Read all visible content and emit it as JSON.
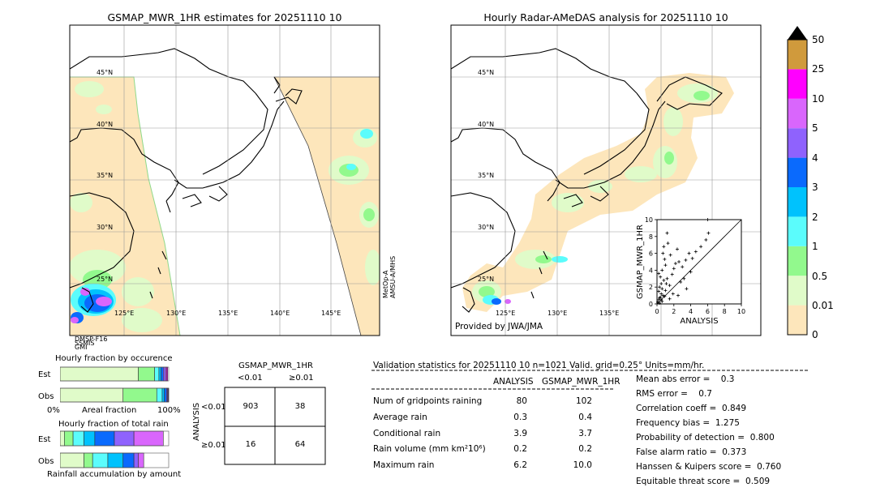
{
  "left_map": {
    "title": "GSMAP_MWR_1HR estimates for 20251110 10",
    "lat_labels": [
      "45°N",
      "40°N",
      "35°N",
      "30°N",
      "25°N"
    ],
    "lon_labels": [
      "125°E",
      "130°E",
      "135°E",
      "140°E",
      "145°E"
    ],
    "sensor_label": "MetOp-A\nAMSU-A/MHS",
    "bottom_labels": "DMSP-F16\nSSMIS\nGMI"
  },
  "right_map": {
    "title": "Hourly Radar-AMeDAS analysis for 20251110 10",
    "lat_labels": [
      "45°N",
      "40°N",
      "35°N",
      "30°N",
      "25°N"
    ],
    "lon_labels": [
      "125°E",
      "130°E",
      "135°E"
    ],
    "credit": "Provided by JWA/JMA"
  },
  "colorbar": {
    "ticks": [
      "0",
      "0.01",
      "0.5",
      "1",
      "2",
      "3",
      "4",
      "5",
      "10",
      "25",
      "50"
    ],
    "colors": [
      "#fde6bb",
      "#e0fbc9",
      "#92f98d",
      "#5bfcfc",
      "#00c2fd",
      "#0a6afd",
      "#8f62fd",
      "#d966fc",
      "#ff00ff",
      "#d09a3c"
    ],
    "extend_color": "#000000"
  },
  "chart_data": [
    {
      "type": "scatter",
      "title": "",
      "xlabel": "ANALYSIS",
      "ylabel": "GSMAP_MWR_1HR",
      "xlim": [
        0,
        10
      ],
      "ylim": [
        0,
        10
      ],
      "xticks": [
        "0",
        "2",
        "4",
        "6",
        "8",
        "10"
      ],
      "yticks": [
        "0",
        "2",
        "4",
        "6",
        "8",
        "10"
      ],
      "points": [
        [
          0.1,
          0.2
        ],
        [
          0.2,
          0.5
        ],
        [
          0.3,
          0.1
        ],
        [
          0.4,
          0.8
        ],
        [
          0.5,
          1.2
        ],
        [
          0.6,
          0.3
        ],
        [
          0.2,
          1.5
        ],
        [
          0.3,
          2.0
        ],
        [
          0.5,
          2.4
        ],
        [
          0.7,
          1.0
        ],
        [
          0.8,
          2.8
        ],
        [
          1.0,
          1.6
        ],
        [
          0.4,
          3.2
        ],
        [
          1.2,
          3.0
        ],
        [
          1.5,
          2.2
        ],
        [
          0.6,
          4.0
        ],
        [
          1.8,
          3.5
        ],
        [
          2.0,
          4.2
        ],
        [
          1.0,
          4.6
        ],
        [
          2.2,
          4.8
        ],
        [
          2.6,
          5.0
        ],
        [
          3.0,
          4.4
        ],
        [
          0.9,
          5.3
        ],
        [
          1.6,
          5.8
        ],
        [
          3.4,
          5.2
        ],
        [
          3.8,
          6.0
        ],
        [
          4.2,
          5.4
        ],
        [
          2.4,
          6.5
        ],
        [
          4.6,
          6.2
        ],
        [
          5.2,
          6.8
        ],
        [
          5.8,
          7.6
        ],
        [
          6.1,
          8.4
        ],
        [
          1.2,
          8.4
        ],
        [
          0.8,
          6.8
        ],
        [
          3.2,
          3.0
        ],
        [
          2.5,
          1.0
        ],
        [
          1.5,
          0.6
        ],
        [
          0.9,
          0.9
        ],
        [
          1.1,
          2.4
        ],
        [
          0.5,
          0.5
        ],
        [
          0.2,
          3.6
        ],
        [
          0.7,
          6.0
        ],
        [
          1.3,
          7.2
        ],
        [
          2.8,
          2.6
        ],
        [
          6.0,
          10.0
        ],
        [
          3.5,
          1.8
        ],
        [
          4.0,
          3.8
        ],
        [
          1.9,
          1.2
        ],
        [
          0.3,
          0.7
        ],
        [
          0.6,
          1.8
        ]
      ]
    },
    {
      "type": "bar",
      "title": "Hourly fraction by occurence",
      "categories": [
        "Est",
        "Obs"
      ],
      "xlabel": "Areal fraction",
      "xticks": [
        "0%",
        "100%"
      ],
      "series": [
        {
          "values": [
            0.0,
            0.0
          ]
        },
        {
          "values": [
            0.72,
            0.58
          ]
        },
        {
          "values": [
            0.15,
            0.31
          ]
        },
        {
          "values": [
            0.04,
            0.05
          ]
        },
        {
          "values": [
            0.02,
            0.02
          ]
        },
        {
          "values": [
            0.02,
            0.02
          ]
        },
        {
          "values": [
            0.02,
            0.01
          ]
        },
        {
          "values": [
            0.01,
            0.005
          ]
        },
        {
          "values": [
            0.01,
            0.005
          ]
        }
      ]
    },
    {
      "type": "bar",
      "title": "Hourly fraction of total rain",
      "categories": [
        "Est",
        "Obs"
      ],
      "xlabel": "Rainfall accumulation by amount",
      "series": [
        {
          "values": [
            0.0,
            0.0
          ]
        },
        {
          "values": [
            0.04,
            0.22
          ]
        },
        {
          "values": [
            0.08,
            0.08
          ]
        },
        {
          "values": [
            0.1,
            0.14
          ]
        },
        {
          "values": [
            0.1,
            0.14
          ]
        },
        {
          "values": [
            0.18,
            0.1
          ]
        },
        {
          "values": [
            0.18,
            0.04
          ]
        },
        {
          "values": [
            0.27,
            0.05
          ]
        },
        {
          "values": [
            0.0,
            0.0
          ]
        }
      ]
    },
    {
      "type": "table",
      "title": "GSMAP_MWR_1HR",
      "col_headers": [
        "<0.01",
        "≥0.01"
      ],
      "row_headers": [
        "<0.01",
        "≥0.01"
      ],
      "row_axis_label": "ANALYSIS",
      "cells": [
        [
          903,
          38
        ],
        [
          16,
          64
        ]
      ]
    }
  ],
  "validation": {
    "header": "Validation statistics for 20251110 10  n=1021 Valid. grid=0.25° Units=mm/hr.",
    "col1": "ANALYSIS",
    "col2": "GSMAP_MWR_1HR",
    "rows": [
      {
        "label": "Num of gridpoints raining",
        "a": "80",
        "b": "102"
      },
      {
        "label": "Average rain",
        "a": "0.3",
        "b": "0.4"
      },
      {
        "label": "Conditional rain",
        "a": "3.9",
        "b": "3.7"
      },
      {
        "label": "Rain volume (mm km²10⁶)",
        "a": "0.2",
        "b": "0.2"
      },
      {
        "label": "Maximum rain",
        "a": "6.2",
        "b": "10.0"
      }
    ],
    "scores": [
      "Mean abs error =    0.3",
      "RMS error =    0.7",
      "Correlation coeff =  0.849",
      "Frequency bias =  1.275",
      "Probability of detection =  0.800",
      "False alarm ratio =  0.373",
      "Hanssen & Kuipers score =  0.760",
      "Equitable threat score =  0.509"
    ]
  }
}
